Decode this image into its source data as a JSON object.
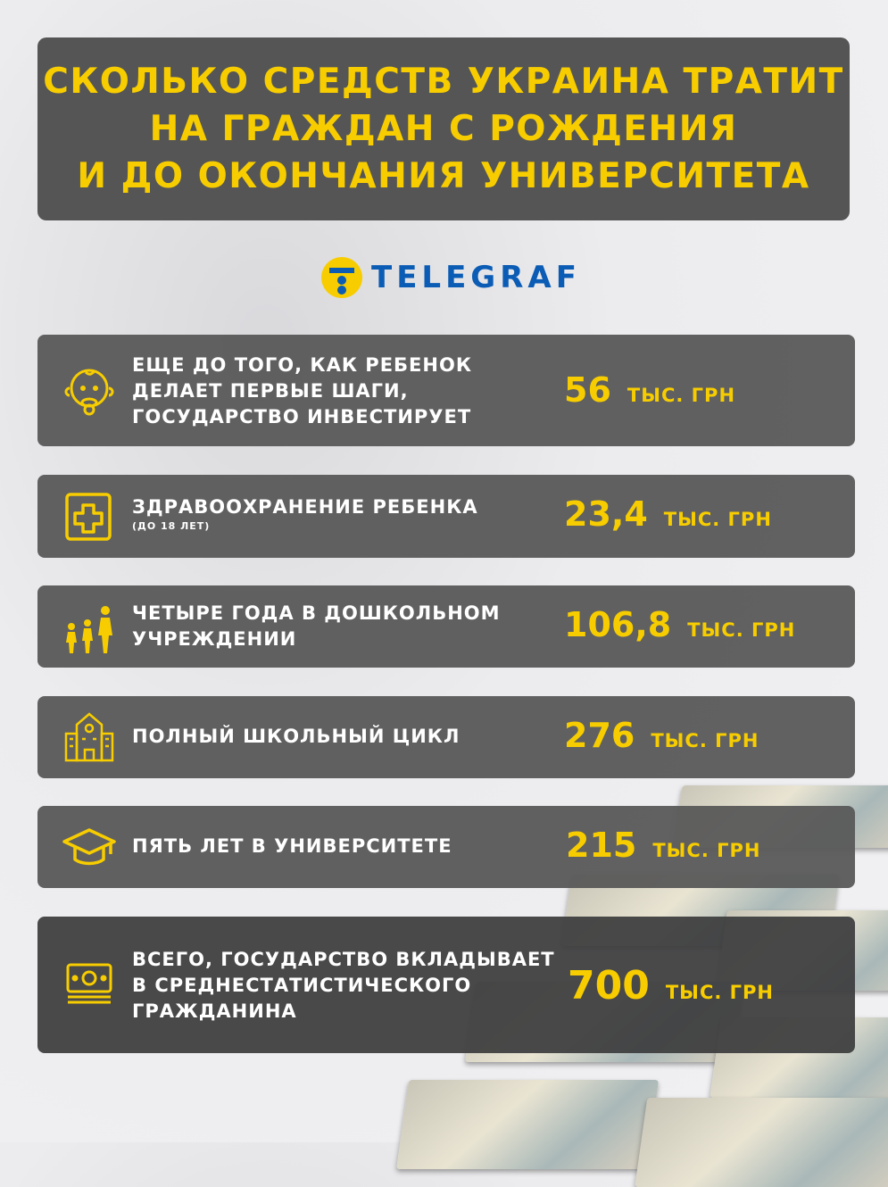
{
  "title": {
    "lines": [
      "СКОЛЬКО СРЕДСТВ УКРАИНА ТРАТИТ",
      "НА ГРАЖДАН С РОЖДЕНИЯ",
      "И ДО ОКОНЧАНИЯ УНИВЕРСИТЕТА"
    ]
  },
  "logo": {
    "text": "TELEGRAF"
  },
  "colors": {
    "accent": "#f7cd00",
    "panel": "#555556",
    "brand": "#0b5cb5"
  },
  "rows": [
    {
      "icon": "baby-icon",
      "lines": [
        "ЕЩЕ ДО ТОГО, КАК РЕБЕНОК",
        "ДЕЛАЕТ ПЕРВЫЕ ШАГИ,",
        "ГОСУДАРСТВО ИНВЕСТИРУЕТ"
      ],
      "value": "56",
      "unit": "ТЫС. ГРН"
    },
    {
      "icon": "medical-cross-icon",
      "lines": [
        "ЗДРАВООХРАНЕНИЕ РЕБЕНКА"
      ],
      "note": "(ДО 18 ЛЕТ)",
      "value": "23,4",
      "unit": "ТЫС. ГРН"
    },
    {
      "icon": "family-icon",
      "lines": [
        "ЧЕТЫРЕ ГОДА В ДОШКОЛЬНОМ",
        "УЧРЕЖДЕНИИ"
      ],
      "value": "106,8",
      "unit": "ТЫС. ГРН"
    },
    {
      "icon": "school-icon",
      "lines": [
        "ПОЛНЫЙ ШКОЛЬНЫЙ ЦИКЛ"
      ],
      "value": "276",
      "unit": "ТЫС. ГРН"
    },
    {
      "icon": "graduation-cap-icon",
      "lines": [
        "ПЯТЬ ЛЕТ В УНИВЕРСИТЕТЕ"
      ],
      "value": "215",
      "unit": "ТЫС. ГРН"
    },
    {
      "icon": "money-icon",
      "lines": [
        "ВСЕГО, ГОСУДАРСТВО ВКЛАДЫВАЕТ",
        "В СРЕДНЕСТАТИСТИЧЕСКОГО",
        "ГРАЖДАНИНА"
      ],
      "value": "700",
      "unit": "ТЫС. ГРН"
    }
  ]
}
